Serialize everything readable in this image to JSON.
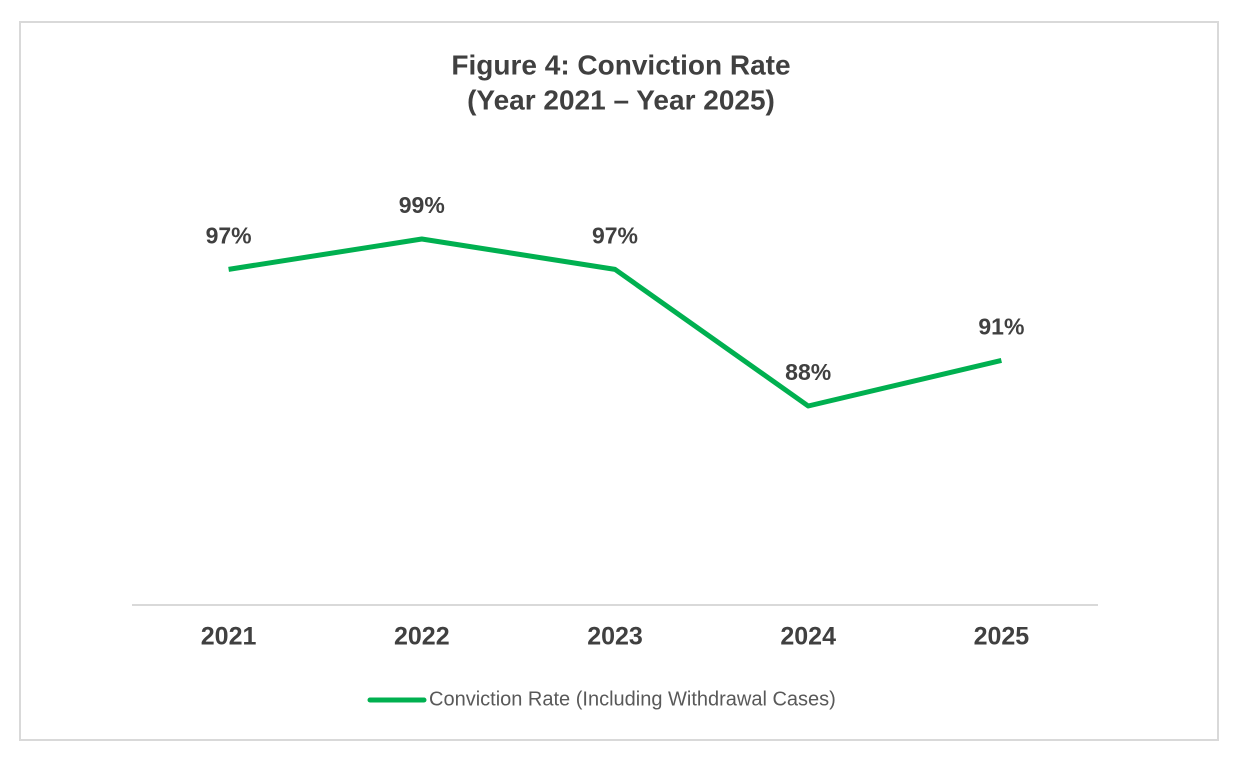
{
  "chart_data": {
    "type": "line",
    "title": "Figure 4: Conviction Rate",
    "subtitle": "(Year 2021 – Year 2025)",
    "categories": [
      "2021",
      "2022",
      "2023",
      "2024",
      "2025"
    ],
    "series": [
      {
        "name": "Conviction Rate (Including Withdrawal Cases)",
        "color": "#00b050",
        "values": [
          97,
          99,
          97,
          88,
          91
        ],
        "value_labels": [
          "97%",
          "99%",
          "97%",
          "88%",
          "91%"
        ]
      }
    ],
    "legend": "bottom"
  }
}
